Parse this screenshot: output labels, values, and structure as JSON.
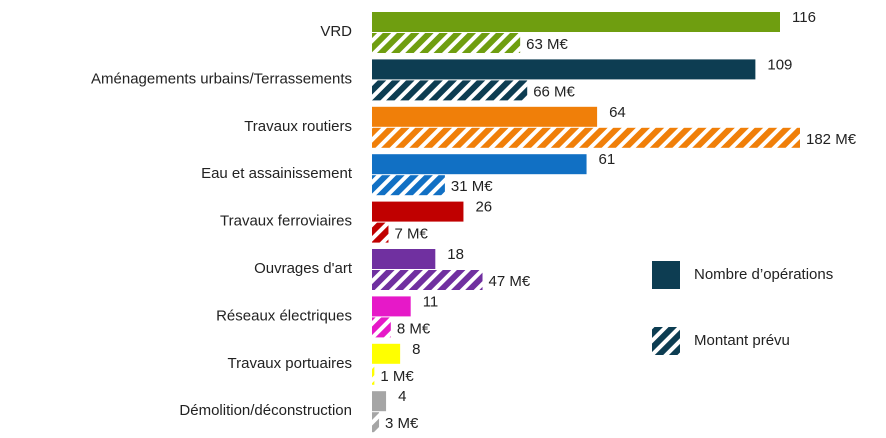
{
  "chart_data": {
    "type": "bar",
    "orientation": "horizontal",
    "categories": [
      "VRD",
      "Aménagements urbains/Terrassements",
      "Travaux routiers",
      "Eau et assainissement",
      "Travaux ferroviaires",
      "Ouvrages d'art",
      "Réseaux électriques",
      "Travaux portuaires",
      "Démolition/déconstruction"
    ],
    "colors": [
      "#6f9e10",
      "#0d3d52",
      "#f07f09",
      "#1170c4",
      "#c00000",
      "#7030a0",
      "#e619c8",
      "#ffff00",
      "#a5a5a5"
    ],
    "legend": "right",
    "series": [
      {
        "name": "Nombre d’opérations",
        "color": "#0d3d52",
        "pattern": "solid",
        "values": [
          116,
          109,
          64,
          61,
          26,
          18,
          11,
          8,
          4
        ]
      },
      {
        "name": "Montant prévu",
        "color": "#0d3d52",
        "pattern": "hatch",
        "values": [
          63,
          66,
          182,
          31,
          7,
          47,
          8,
          1,
          3
        ],
        "value_labels": [
          "63 M€",
          "66 M€",
          "182 M€",
          "31 M€",
          "7 M€",
          "47 M€",
          "8 M€",
          "1 M€",
          "3 M€"
        ]
      }
    ]
  }
}
